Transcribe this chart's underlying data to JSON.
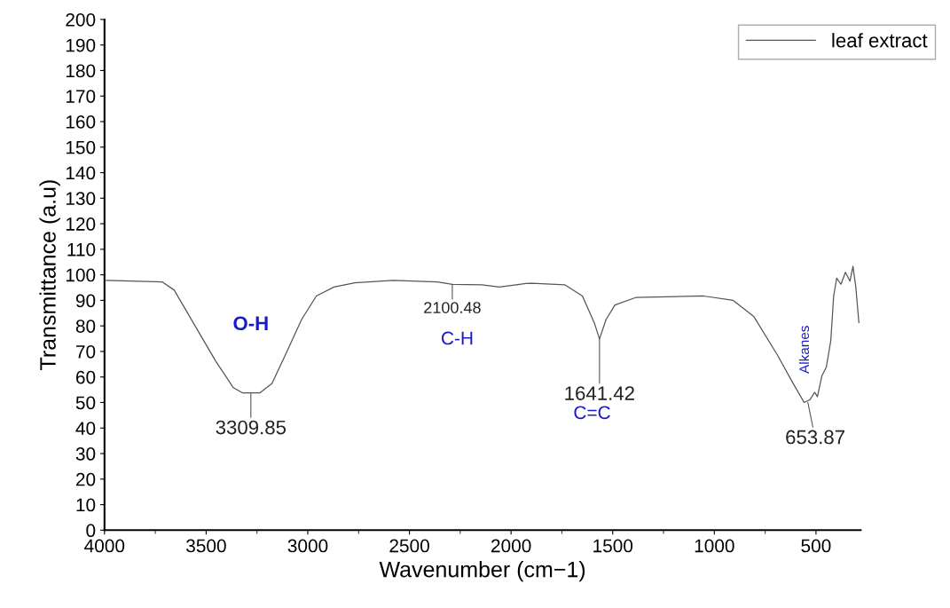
{
  "chart_data": {
    "type": "line",
    "xlabel": "Wavenumber (cm−1)",
    "ylabel": "Transmittance (a.u)",
    "xlim": [
      4000,
      280
    ],
    "xticks": [
      4000,
      3500,
      3000,
      2500,
      2000,
      1500,
      1000,
      500
    ],
    "ylim": [
      0,
      200
    ],
    "yticks": [
      0,
      10,
      20,
      30,
      40,
      50,
      60,
      70,
      80,
      90,
      100,
      110,
      120,
      130,
      140,
      150,
      160,
      170,
      180,
      190,
      200
    ],
    "grid": false,
    "legend": "top right",
    "marker": "none",
    "line_style": "solid",
    "series": [
      {
        "name": "leaf extract",
        "color": "#555555",
        "x": [
          3991,
          3715,
          3657,
          3555,
          3453,
          3366,
          3322,
          3235,
          3176,
          3104,
          3031,
          2958,
          2871,
          2769,
          2580,
          2362,
          2289,
          2144,
          2057,
          1926,
          1897,
          1736,
          1649,
          1591,
          1565,
          1533,
          1489,
          1387,
          1053,
          907,
          805,
          689,
          617,
          558,
          529,
          507,
          493,
          471,
          449,
          427,
          413,
          398,
          377,
          355,
          333,
          318,
          304,
          289
        ],
        "values": [
          97.8,
          97.2,
          94.0,
          80.1,
          66.2,
          55.8,
          53.8,
          53.8,
          57.5,
          69.7,
          82.4,
          91.7,
          95.2,
          96.9,
          97.8,
          97.2,
          96.3,
          96.1,
          95.2,
          96.6,
          96.7,
          96.1,
          91.7,
          81.3,
          74.9,
          82.4,
          88.2,
          91.1,
          91.7,
          90.0,
          83.6,
          68.5,
          58.1,
          50.0,
          51.1,
          54.0,
          52.3,
          60.4,
          63.9,
          74.3,
          91.7,
          98.7,
          96.3,
          101.0,
          97.5,
          103.3,
          95.2,
          81.3
        ]
      }
    ],
    "annotations": [
      {
        "text": "3309.85",
        "x": 3280,
        "y": 53.8
      },
      "O-H",
      {
        "text": "2100.48",
        "x": 2289,
        "y": 96.3
      },
      "C-H",
      {
        "text": "1641.42",
        "x": 1565,
        "y": 74.9
      },
      "C=C",
      {
        "text": "653.87",
        "x": 540,
        "y": 50.0
      },
      "Alkanes"
    ]
  }
}
